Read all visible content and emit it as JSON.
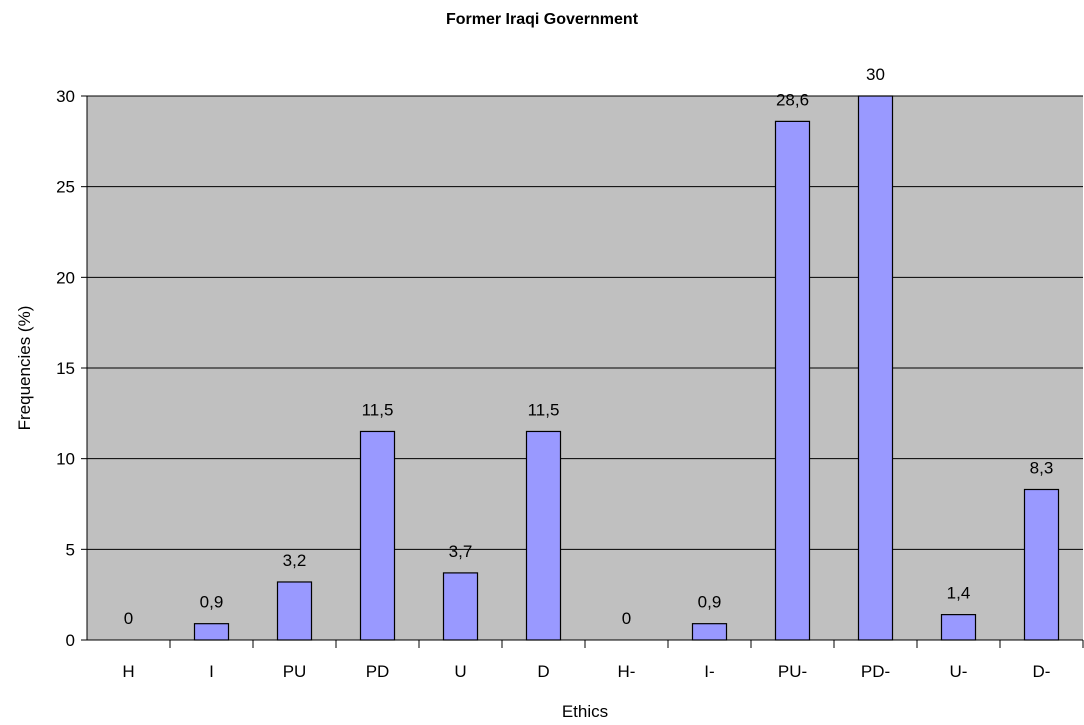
{
  "chart_data": {
    "type": "bar",
    "title": "Former Iraqi Government",
    "xlabel": "Ethics",
    "ylabel": "Frequencies (%)",
    "categories": [
      "H",
      "I",
      "PU",
      "PD",
      "U",
      "D",
      "H-",
      "I-",
      "PU-",
      "PD-",
      "U-",
      "D-"
    ],
    "values": [
      0,
      0.9,
      3.2,
      11.5,
      3.7,
      11.5,
      0,
      0.9,
      28.6,
      30,
      1.4,
      8.3
    ],
    "data_labels": [
      "0",
      "0,9",
      "3,2",
      "11,5",
      "3,7",
      "11,5",
      "0",
      "0,9",
      "28,6",
      "30",
      "1,4",
      "8,3"
    ],
    "ylim": [
      0,
      30
    ],
    "yticks": [
      0,
      5,
      10,
      15,
      20,
      25,
      30
    ],
    "grid": true,
    "plot_background": "#c0c0c0",
    "bar_color": "#9999ff",
    "bar_edge_color": "#000000"
  }
}
